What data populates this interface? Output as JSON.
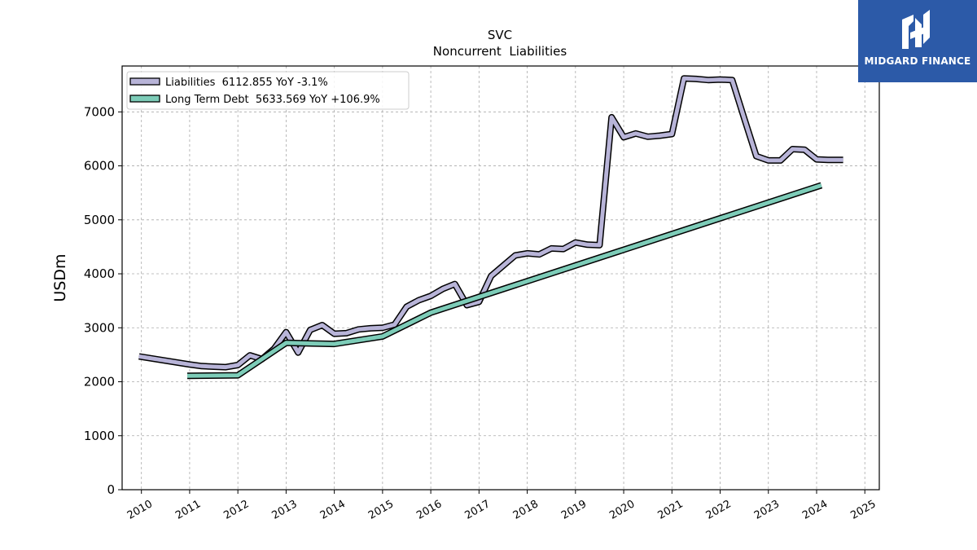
{
  "chart_data": {
    "type": "line",
    "title": "SVC",
    "subtitle": "Noncurrent  Liabilities",
    "xlabel": "",
    "ylabel": "USDm",
    "xlim": [
      2009.6,
      2025.3
    ],
    "ylim": [
      0,
      7850
    ],
    "grid": true,
    "legend_position": "top-left",
    "x_ticks": [
      "2010",
      "2011",
      "2012",
      "2013",
      "2014",
      "2015",
      "2016",
      "2017",
      "2018",
      "2019",
      "2020",
      "2021",
      "2022",
      "2023",
      "2024",
      "2025"
    ],
    "y_ticks": [
      "0",
      "1000",
      "2000",
      "3000",
      "4000",
      "5000",
      "6000",
      "7000"
    ],
    "series": [
      {
        "name": "Liabilities",
        "legend_label": "Liabilities  6112.855 YoY -3.1%",
        "color": "#b8b4d8",
        "x": [
          2009.95,
          2011.0,
          2011.25,
          2011.5,
          2011.75,
          2012.0,
          2012.25,
          2012.5,
          2012.75,
          2013.0,
          2013.25,
          2013.5,
          2013.75,
          2014.0,
          2014.25,
          2014.5,
          2014.75,
          2015.0,
          2015.25,
          2015.5,
          2015.75,
          2016.0,
          2016.25,
          2016.5,
          2016.75,
          2017.0,
          2017.25,
          2017.5,
          2017.75,
          2018.0,
          2018.25,
          2018.5,
          2018.75,
          2019.0,
          2019.25,
          2019.5,
          2019.75,
          2020.0,
          2020.25,
          2020.5,
          2020.75,
          2021.0,
          2021.25,
          2021.5,
          2021.75,
          2022.0,
          2022.25,
          2022.5,
          2022.75,
          2023.0,
          2023.25,
          2023.5,
          2023.75,
          2024.0,
          2024.25,
          2024.55
        ],
        "values": [
          2470,
          2320,
          2290,
          2280,
          2270,
          2310,
          2490,
          2420,
          2610,
          2920,
          2540,
          2960,
          3050,
          2890,
          2900,
          2970,
          2990,
          3000,
          3060,
          3390,
          3510,
          3590,
          3720,
          3810,
          3420,
          3480,
          3960,
          4150,
          4340,
          4380,
          4360,
          4470,
          4460,
          4580,
          4540,
          4530,
          6900,
          6530,
          6600,
          6540,
          6560,
          6590,
          7620,
          7610,
          7590,
          7600,
          7590,
          6880,
          6180,
          6100,
          6100,
          6310,
          6300,
          6120,
          6110,
          6110
        ]
      },
      {
        "name": "Long Term Debt",
        "legend_label": "Long Term Debt  5633.569 YoY +106.9%",
        "color": "#7dccb8",
        "x": [
          2010.95,
          2012.0,
          2013.0,
          2014.0,
          2015.0,
          2016.0,
          2024.1
        ],
        "values": [
          2110,
          2120,
          2720,
          2700,
          2840,
          3280,
          5640
        ]
      }
    ]
  },
  "brand": {
    "name": "MIDGARD FINANCE",
    "color": "#2c5aa8"
  }
}
